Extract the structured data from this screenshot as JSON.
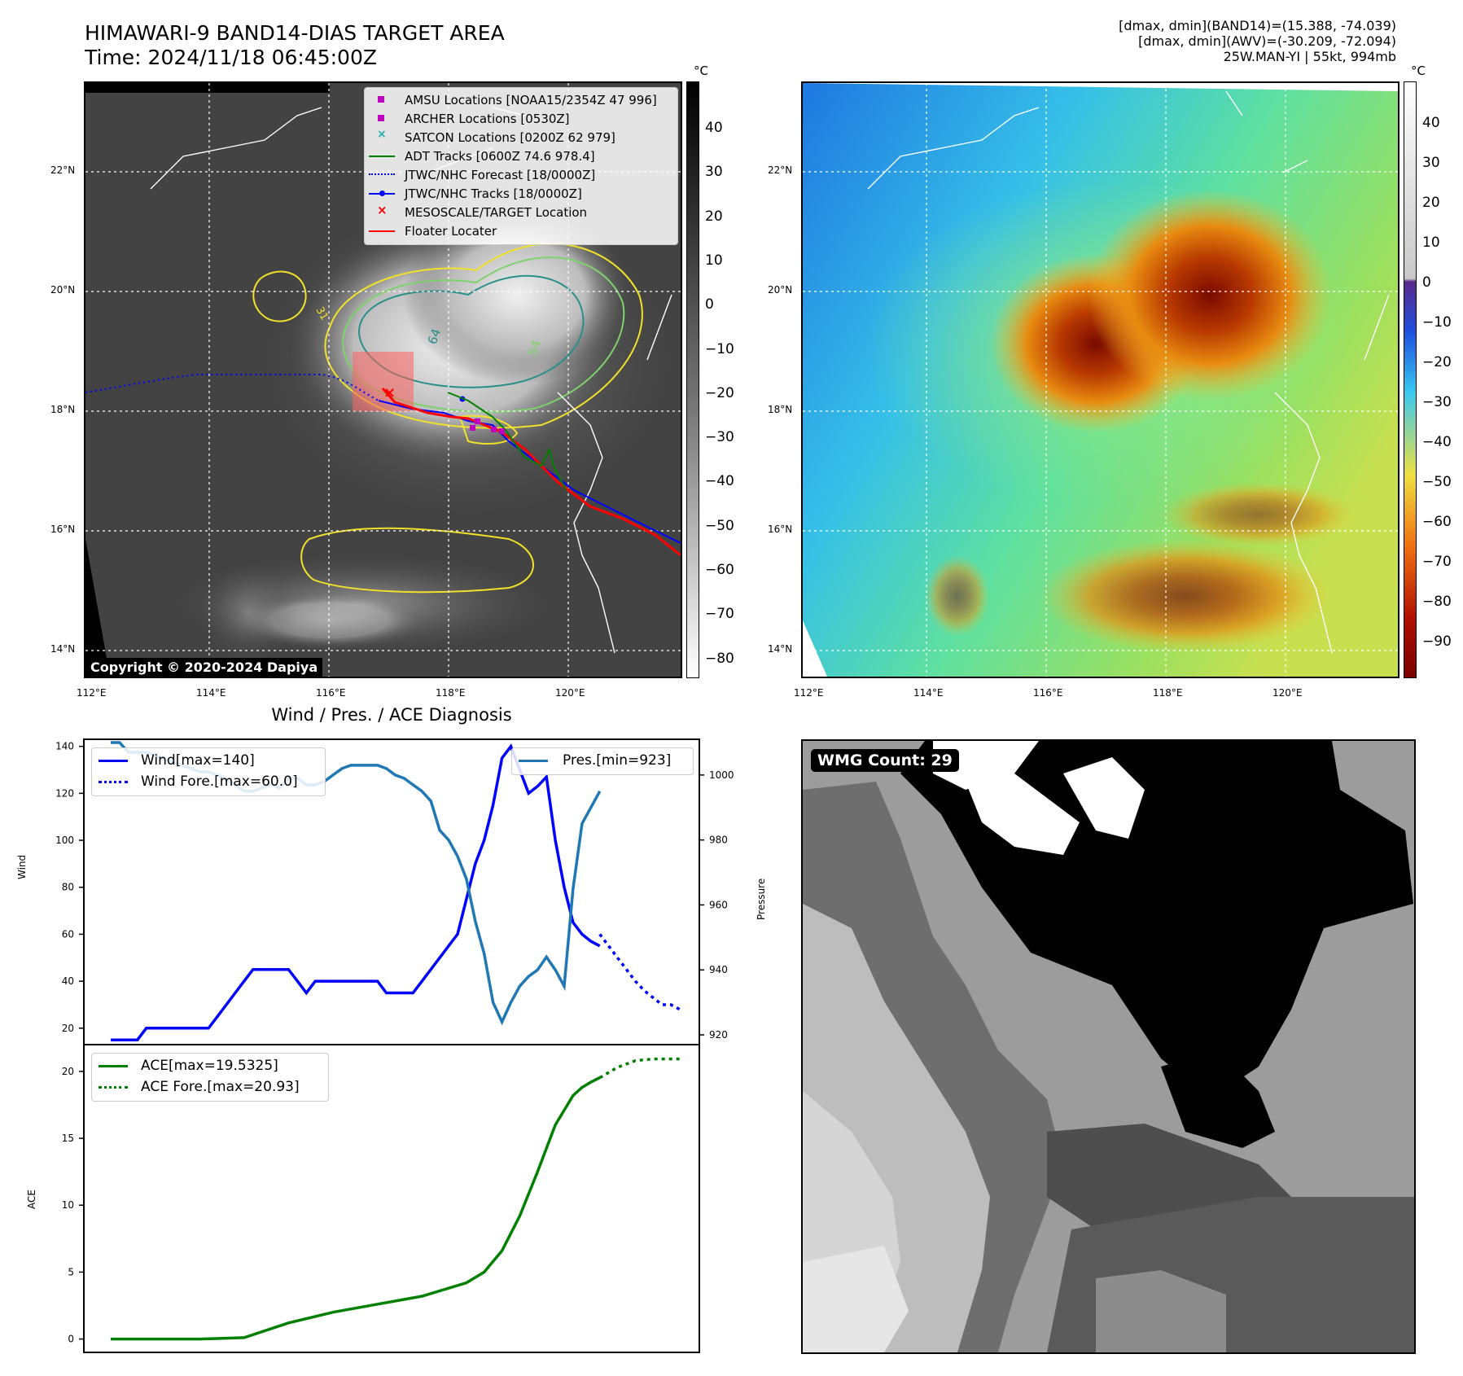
{
  "header": {
    "title": "HIMAWARI-9 BAND14-DIAS TARGET AREA",
    "time": "Time: 2024/11/18 06:45:00Z",
    "info_line1": "[dmax, dmin](BAND14)=(15.388, -74.039)",
    "info_line2": "[dmax, dmin](AWV)=(-30.209, -72.094)",
    "info_line3": "25W.MAN-YI | 55kt, 994mb"
  },
  "map_axes": {
    "lon_labels": [
      "112°E",
      "114°E",
      "116°E",
      "118°E",
      "120°E"
    ],
    "lat_labels": [
      "22°N",
      "20°N",
      "18°N",
      "16°N",
      "14°N"
    ]
  },
  "ir_panel": {
    "copyright": "Copyright © 2020-2024 Dapiya",
    "colorbar_unit": "°C",
    "colorbar_ticks": [
      "40",
      "30",
      "20",
      "10",
      "0",
      "−10",
      "−20",
      "−30",
      "−40",
      "−50",
      "−60",
      "−70",
      "−80"
    ],
    "contour_labels": [
      "64",
      "54",
      "31"
    ],
    "legend": [
      {
        "label": "AMSU Locations [NOAA15/2354Z 47 996]",
        "marker": "square",
        "color": "#c000c0"
      },
      {
        "label": "ARCHER Locations [0530Z]",
        "marker": "square",
        "color": "#c000c0"
      },
      {
        "label": "SATCON Locations [0200Z 62 979]",
        "marker": "x",
        "color": "#20b0b0"
      },
      {
        "label": "ADT Tracks [0600Z 74.6 978.4]",
        "marker": "line",
        "color": "#008000"
      },
      {
        "label": "JTWC/NHC Forecast [18/0000Z]",
        "marker": "dotted",
        "color": "#0000ff"
      },
      {
        "label": "JTWC/NHC Tracks [18/0000Z]",
        "marker": "dotline",
        "color": "#0000ff"
      },
      {
        "label": "MESOSCALE/TARGET Location",
        "marker": "x",
        "color": "#ff0000"
      },
      {
        "label": "Floater Locater",
        "marker": "line",
        "color": "#ff0000"
      }
    ]
  },
  "wv_panel": {
    "colorbar_unit": "°C",
    "colorbar_ticks": [
      "40",
      "30",
      "20",
      "10",
      "0",
      "−10",
      "−20",
      "−30",
      "−40",
      "−50",
      "−60",
      "−70",
      "−80",
      "−90"
    ]
  },
  "wmg_panel": {
    "count_label": "WMG Count: 29"
  },
  "colors": {
    "wind": "#0000ff",
    "pressure": "#1f77b4",
    "ace": "#008000",
    "floater": "#ff0000"
  },
  "chart_data": [
    {
      "type": "line",
      "title": "Wind / Pres. / ACE Diagnosis",
      "ylabel": "Wind",
      "y2label": "Pressure",
      "ylim": [
        13,
        143
      ],
      "y2lim": [
        917,
        1011
      ],
      "yticks": [
        20,
        40,
        60,
        80,
        100,
        120,
        140
      ],
      "y2ticks": [
        920,
        940,
        960,
        980,
        1000
      ],
      "series": [
        {
          "name": "Wind[max=140]",
          "axis": "left",
          "style": "solid",
          "x": [
            0,
            1,
            2,
            3,
            4,
            5,
            6,
            7,
            8,
            9,
            10,
            11,
            12,
            13,
            14,
            15,
            16,
            17,
            18,
            19,
            20,
            21,
            22,
            23,
            24,
            25,
            26,
            27,
            28,
            29,
            30,
            31,
            32,
            33,
            34,
            35,
            36,
            37,
            38,
            39,
            40,
            41,
            42,
            43,
            44,
            45,
            46,
            47,
            48,
            49,
            50,
            51,
            52,
            53,
            54,
            55
          ],
          "values": [
            15,
            15,
            15,
            15,
            20,
            20,
            20,
            20,
            20,
            20,
            20,
            20,
            25,
            30,
            35,
            40,
            45,
            45,
            45,
            45,
            45,
            40,
            35,
            40,
            40,
            40,
            40,
            40,
            40,
            40,
            40,
            35,
            35,
            35,
            35,
            40,
            45,
            50,
            55,
            60,
            75,
            90,
            100,
            115,
            135,
            140,
            130,
            120,
            123,
            127,
            100,
            80,
            65,
            60,
            57,
            55
          ]
        },
        {
          "name": "Wind Fore.[max=60.0]",
          "axis": "left",
          "style": "dotted",
          "x": [
            55,
            56,
            57,
            58,
            59,
            60,
            61,
            62,
            63,
            64
          ],
          "values": [
            60,
            55,
            50,
            45,
            40,
            36,
            33,
            30,
            30,
            28
          ]
        },
        {
          "name": "Pres.[min=923]",
          "axis": "right",
          "style": "solid",
          "x": [
            0,
            1,
            2,
            3,
            4,
            5,
            6,
            7,
            8,
            9,
            10,
            11,
            12,
            13,
            14,
            15,
            16,
            17,
            18,
            19,
            20,
            21,
            22,
            23,
            24,
            25,
            26,
            27,
            28,
            29,
            30,
            31,
            32,
            33,
            34,
            35,
            36,
            37,
            38,
            39,
            40,
            41,
            42,
            43,
            44,
            45,
            46,
            47,
            48,
            49,
            50,
            51,
            52,
            53,
            54,
            55
          ],
          "values": [
            1010,
            1010,
            1007,
            1007,
            1007,
            1006,
            1005,
            1004,
            1003,
            1002,
            1001,
            1001,
            1000,
            999,
            997,
            995,
            995,
            996,
            997,
            996,
            999,
            999,
            997,
            997,
            998,
            1000,
            1002,
            1003,
            1003,
            1003,
            1003,
            1002,
            1000,
            999,
            997,
            995,
            992,
            983,
            980,
            975,
            968,
            955,
            945,
            930,
            924,
            930,
            935,
            938,
            940,
            944,
            940,
            935,
            965,
            985,
            990,
            995
          ]
        }
      ]
    },
    {
      "type": "line",
      "ylabel": "ACE",
      "ylim": [
        -1,
        22
      ],
      "yticks": [
        0,
        5,
        10,
        15,
        20
      ],
      "series": [
        {
          "name": "ACE[max=19.5325]",
          "style": "solid",
          "x": [
            0,
            5,
            10,
            15,
            20,
            25,
            30,
            35,
            40,
            42,
            44,
            46,
            48,
            50,
            52,
            53,
            54,
            55
          ],
          "values": [
            0,
            0,
            0,
            0.1,
            1.2,
            2.0,
            2.6,
            3.2,
            4.2,
            5,
            6.6,
            9.2,
            12.5,
            16.0,
            18.2,
            18.8,
            19.2,
            19.53
          ]
        },
        {
          "name": "ACE Fore.[max=20.93]",
          "style": "dotted",
          "x": [
            55,
            57,
            59,
            61,
            63,
            64
          ],
          "values": [
            19.53,
            20.3,
            20.8,
            20.93,
            20.93,
            20.93
          ]
        }
      ]
    }
  ]
}
